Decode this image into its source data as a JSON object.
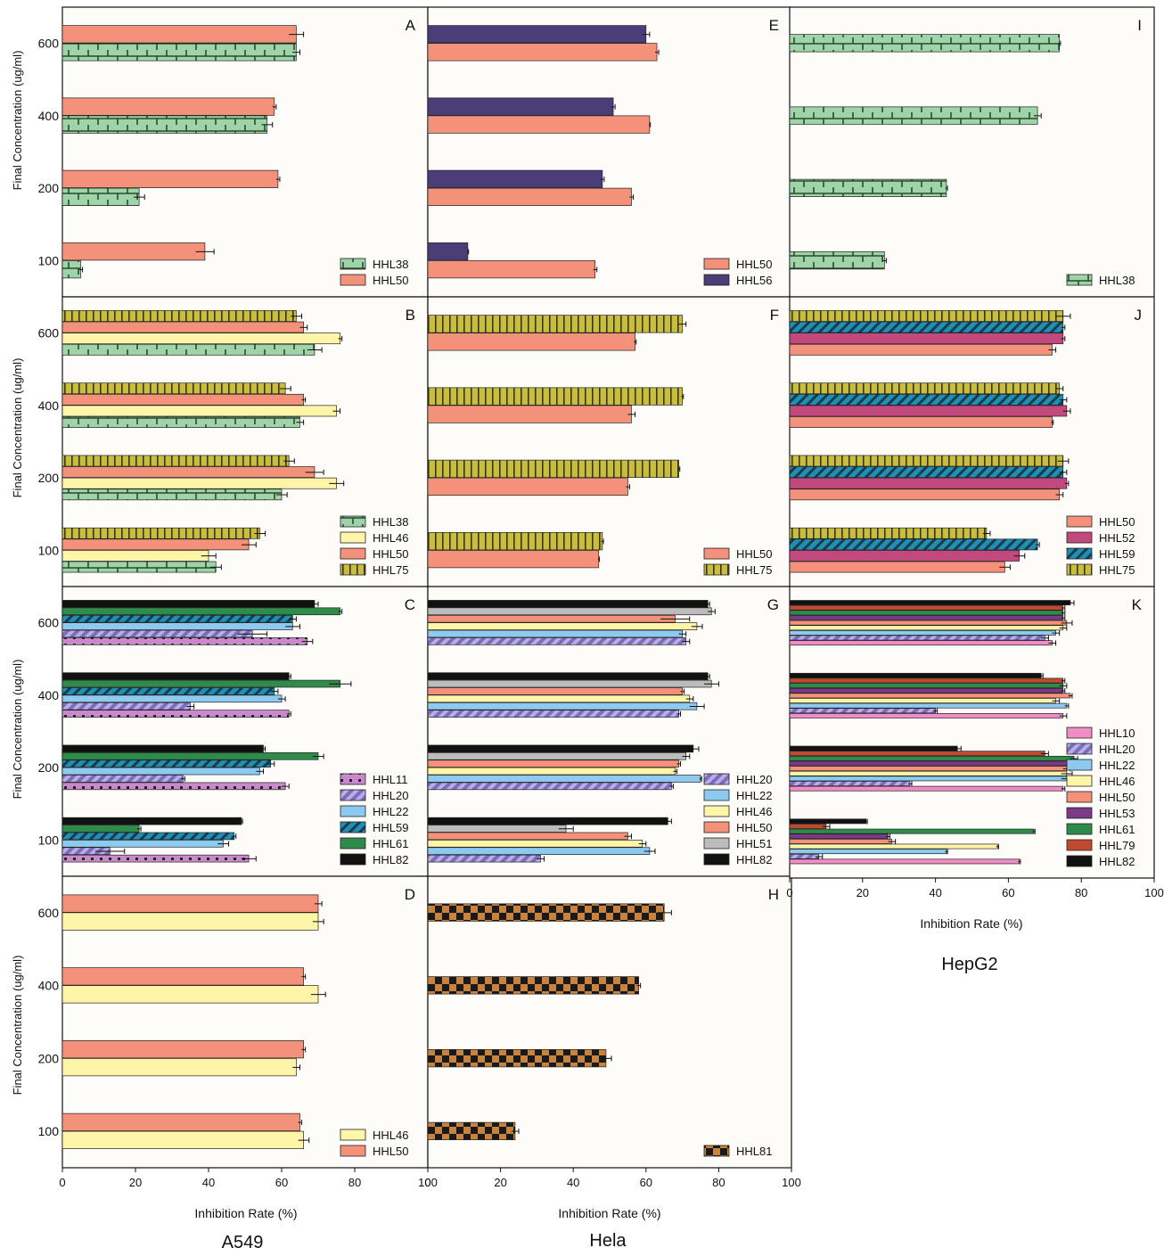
{
  "figure": {
    "ylabel": "Final Concentration (ug/ml)",
    "xlabel": "Inhibition Rate (%)",
    "columns": [
      "A549",
      "Hela",
      "HepG2"
    ]
  },
  "series_styles": {
    "HHL10": {
      "color": "#f28cc4",
      "pattern": "solid"
    },
    "HHL11": {
      "color": "#cc88cc",
      "pattern": "dots"
    },
    "HHL20": {
      "color": "#8f7fc9",
      "pattern": "diag"
    },
    "HHL22": {
      "color": "#8ecaf0",
      "pattern": "solid"
    },
    "HHL38": {
      "color": "#9fd3a8",
      "pattern": "brick"
    },
    "HHL46": {
      "color": "#fff5a8",
      "pattern": "solid"
    },
    "HHL50": {
      "color": "#f4917a",
      "pattern": "solid"
    },
    "HHL51": {
      "color": "#bcbcbc",
      "pattern": "solid"
    },
    "HHL52": {
      "color": "#c2497e",
      "pattern": "solid"
    },
    "HHL53": {
      "color": "#7a3a86",
      "pattern": "solid"
    },
    "HHL56": {
      "color": "#4a3d78",
      "pattern": "solid"
    },
    "HHL59": {
      "color": "#1e8fb5",
      "pattern": "diag"
    },
    "HHL61": {
      "color": "#2f8b4a",
      "pattern": "solid"
    },
    "HHL75": {
      "color": "#c9bd3e",
      "pattern": "vlines"
    },
    "HHL79": {
      "color": "#c04a30",
      "pattern": "solid"
    },
    "HHL81": {
      "color": "#c8843e",
      "pattern": "checker"
    },
    "HHL82": {
      "color": "#111111",
      "pattern": "solid"
    }
  },
  "chart_data": [
    {
      "letter": "A",
      "type": "bar",
      "categories": [
        "100",
        "200",
        "400",
        "600"
      ],
      "series": [
        {
          "name": "HHL38",
          "values": [
            5,
            21,
            56,
            64
          ],
          "errors": [
            0.5,
            1.5,
            1.5,
            1
          ]
        },
        {
          "name": "HHL50",
          "values": [
            39,
            59,
            58,
            64
          ],
          "errors": [
            2.5,
            0.5,
            0.5,
            2
          ]
        }
      ]
    },
    {
      "letter": "B",
      "type": "bar",
      "categories": [
        "100",
        "200",
        "400",
        "600"
      ],
      "series": [
        {
          "name": "HHL38",
          "values": [
            42,
            60,
            65,
            69
          ],
          "errors": [
            1.5,
            1.5,
            1,
            2
          ]
        },
        {
          "name": "HHL46",
          "values": [
            40,
            75,
            75,
            76
          ],
          "errors": [
            2,
            2,
            1,
            0.5
          ]
        },
        {
          "name": "HHL50",
          "values": [
            51,
            69,
            66,
            66
          ],
          "errors": [
            2,
            2.5,
            0.5,
            1
          ]
        },
        {
          "name": "HHL75",
          "values": [
            54,
            62,
            61,
            64
          ],
          "errors": [
            1.5,
            1.5,
            1.5,
            1.5
          ]
        }
      ]
    },
    {
      "letter": "C",
      "type": "bar",
      "categories": [
        "100",
        "200",
        "400",
        "600"
      ],
      "series": [
        {
          "name": "HHL11",
          "values": [
            51,
            61,
            62,
            67
          ],
          "errors": [
            2,
            1,
            0.5,
            1.5
          ]
        },
        {
          "name": "HHL20",
          "values": [
            13,
            33,
            35,
            52
          ],
          "errors": [
            4,
            0.5,
            1,
            4
          ]
        },
        {
          "name": "HHL22",
          "values": [
            44,
            54,
            60,
            63
          ],
          "errors": [
            1.5,
            1,
            1,
            2
          ]
        },
        {
          "name": "HHL59",
          "values": [
            47,
            57,
            58,
            63
          ],
          "errors": [
            0.5,
            1,
            1,
            1
          ]
        },
        {
          "name": "HHL61",
          "values": [
            21,
            70,
            76,
            76
          ],
          "errors": [
            0.5,
            1.5,
            3,
            0.5
          ]
        },
        {
          "name": "HHL82",
          "values": [
            49,
            55,
            62,
            69
          ],
          "errors": [
            0.3,
            0.5,
            0.5,
            1
          ]
        }
      ]
    },
    {
      "letter": "D",
      "type": "bar",
      "categories": [
        "100",
        "200",
        "400",
        "600"
      ],
      "series": [
        {
          "name": "HHL46",
          "values": [
            66,
            64,
            70,
            70
          ],
          "errors": [
            1.5,
            1,
            2,
            1.5
          ]
        },
        {
          "name": "HHL50",
          "values": [
            65,
            66,
            66,
            70
          ],
          "errors": [
            0.5,
            0.5,
            0.5,
            1
          ]
        }
      ]
    },
    {
      "letter": "E",
      "type": "bar",
      "categories": [
        "100",
        "200",
        "400",
        "600"
      ],
      "series": [
        {
          "name": "HHL50",
          "values": [
            46,
            56,
            61,
            63
          ],
          "errors": [
            0.5,
            0.5,
            0.2,
            0.5
          ]
        },
        {
          "name": "HHL56",
          "values": [
            11,
            48,
            51,
            60
          ],
          "errors": [
            0.2,
            0.5,
            0.5,
            1
          ]
        }
      ]
    },
    {
      "letter": "F",
      "type": "bar",
      "categories": [
        "100",
        "200",
        "400",
        "600"
      ],
      "series": [
        {
          "name": "HHL50",
          "values": [
            47,
            55,
            56,
            57
          ],
          "errors": [
            0.2,
            0.5,
            1,
            0.3
          ]
        },
        {
          "name": "HHL75",
          "values": [
            48,
            69,
            70,
            70
          ],
          "errors": [
            0.3,
            0.3,
            0.3,
            1
          ]
        }
      ]
    },
    {
      "letter": "G",
      "type": "bar",
      "categories": [
        "100",
        "200",
        "400",
        "600"
      ],
      "series": [
        {
          "name": "HHL20",
          "values": [
            31,
            67,
            69,
            71
          ],
          "errors": [
            1,
            0.5,
            0.5,
            1
          ]
        },
        {
          "name": "HHL22",
          "values": [
            61,
            75,
            74,
            70
          ],
          "errors": [
            1.5,
            0.3,
            2,
            1
          ]
        },
        {
          "name": "HHL46",
          "values": [
            59,
            68,
            72,
            74
          ],
          "errors": [
            1,
            0.5,
            1,
            1.5
          ]
        },
        {
          "name": "HHL50",
          "values": [
            55,
            69,
            70,
            68
          ],
          "errors": [
            1,
            0.5,
            0.5,
            4
          ]
        },
        {
          "name": "HHL51",
          "values": [
            38,
            71,
            78,
            78
          ],
          "errors": [
            2,
            1,
            2,
            1
          ]
        },
        {
          "name": "HHL82",
          "values": [
            66,
            73,
            77,
            77
          ],
          "errors": [
            1,
            1.5,
            0.5,
            0.5
          ]
        }
      ]
    },
    {
      "letter": "H",
      "type": "bar",
      "categories": [
        "100",
        "200",
        "400",
        "600"
      ],
      "series": [
        {
          "name": "HHL81",
          "values": [
            24,
            49,
            58,
            65
          ],
          "errors": [
            1,
            1.5,
            0.5,
            2
          ]
        }
      ]
    },
    {
      "letter": "I",
      "type": "bar",
      "categories": [
        "100",
        "200",
        "400",
        "600"
      ],
      "series": [
        {
          "name": "HHL38",
          "values": [
            26,
            43,
            68,
            74
          ],
          "errors": [
            0.5,
            0.3,
            1,
            0.3
          ]
        }
      ]
    },
    {
      "letter": "J",
      "type": "bar",
      "categories": [
        "100",
        "200",
        "400",
        "600"
      ],
      "series": [
        {
          "name": "HHL50",
          "values": [
            59,
            74,
            72,
            72
          ],
          "errors": [
            1.5,
            1,
            0.3,
            1
          ]
        },
        {
          "name": "HHL52",
          "values": [
            63,
            76,
            76,
            75
          ],
          "errors": [
            1.5,
            0.5,
            1,
            0.5
          ]
        },
        {
          "name": "HHL59",
          "values": [
            68,
            75,
            75,
            75
          ],
          "errors": [
            0.5,
            1,
            1,
            0.5
          ]
        },
        {
          "name": "HHL75",
          "values": [
            54,
            75,
            74,
            75
          ],
          "errors": [
            1,
            1.5,
            1,
            2
          ]
        }
      ]
    },
    {
      "letter": "K",
      "type": "bar",
      "categories": [
        "100",
        "200",
        "400",
        "600"
      ],
      "series": [
        {
          "name": "HHL10",
          "values": [
            63,
            75,
            75,
            72
          ],
          "errors": [
            0.3,
            0.5,
            1,
            1
          ]
        },
        {
          "name": "HHL20",
          "values": [
            8,
            33,
            40,
            70
          ],
          "errors": [
            1,
            0.5,
            0.5,
            1
          ]
        },
        {
          "name": "HHL22",
          "values": [
            43,
            76,
            76,
            73
          ],
          "errors": [
            0.3,
            1.5,
            0.5,
            1
          ]
        },
        {
          "name": "HHL46",
          "values": [
            57,
            76,
            73,
            75
          ],
          "errors": [
            0.3,
            1.5,
            1,
            1
          ]
        },
        {
          "name": "HHL50",
          "values": [
            28,
            76,
            77,
            76
          ],
          "errors": [
            1,
            1,
            0.5,
            1.5
          ]
        },
        {
          "name": "HHL53",
          "values": [
            27,
            77,
            75,
            75
          ],
          "errors": [
            0.5,
            1,
            0.5,
            0.5
          ]
        },
        {
          "name": "HHL61",
          "values": [
            67,
            78,
            75,
            75
          ],
          "errors": [
            0.3,
            1,
            1,
            0.5
          ]
        },
        {
          "name": "HHL79",
          "values": [
            10,
            70,
            75,
            75
          ],
          "errors": [
            1,
            1,
            0.5,
            0.5
          ]
        },
        {
          "name": "HHL82",
          "values": [
            21,
            46,
            69,
            77
          ],
          "errors": [
            0.3,
            1,
            0.5,
            1
          ]
        }
      ]
    }
  ],
  "x_ticks": [
    "0",
    "20",
    "40",
    "60",
    "80",
    "100"
  ],
  "xlim": [
    0,
    100
  ]
}
